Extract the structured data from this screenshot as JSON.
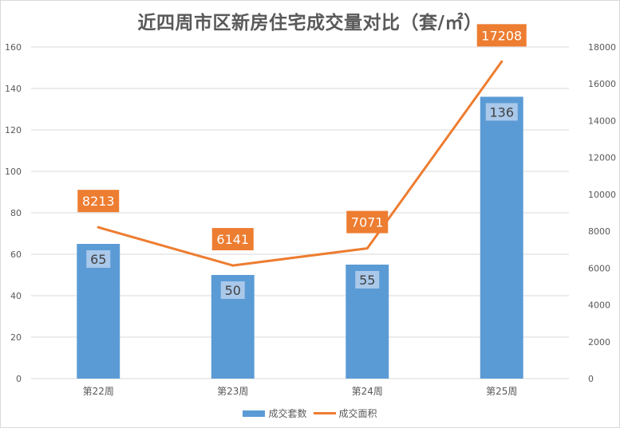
{
  "chart_data": {
    "type": "bar",
    "title": "近四周市区新房住宅成交量对比（套/㎡）",
    "categories": [
      "第22周",
      "第23周",
      "第24周",
      "第25周"
    ],
    "series": [
      {
        "name": "成交套数",
        "type": "bar",
        "axis": "left",
        "values": [
          65,
          50,
          55,
          136
        ],
        "color": "#5b9bd5"
      },
      {
        "name": "成交面积",
        "type": "line",
        "axis": "right",
        "values": [
          8213,
          6141,
          7071,
          17208
        ],
        "color": "#ed7d31"
      }
    ],
    "ylim_left": [
      0,
      160
    ],
    "yticks_left": [
      0,
      20,
      40,
      60,
      80,
      100,
      120,
      140,
      160
    ],
    "ylim_right": [
      0,
      18000
    ],
    "yticks_right": [
      0,
      2000,
      4000,
      6000,
      8000,
      10000,
      12000,
      14000,
      16000,
      18000
    ],
    "grid": true,
    "legend_position": "bottom"
  },
  "colors": {
    "grid": "#d9d9d9",
    "axis_text": "#595959",
    "bar_label_bg": "#a9c8ea",
    "line_label_bg": "#ed7d31"
  }
}
